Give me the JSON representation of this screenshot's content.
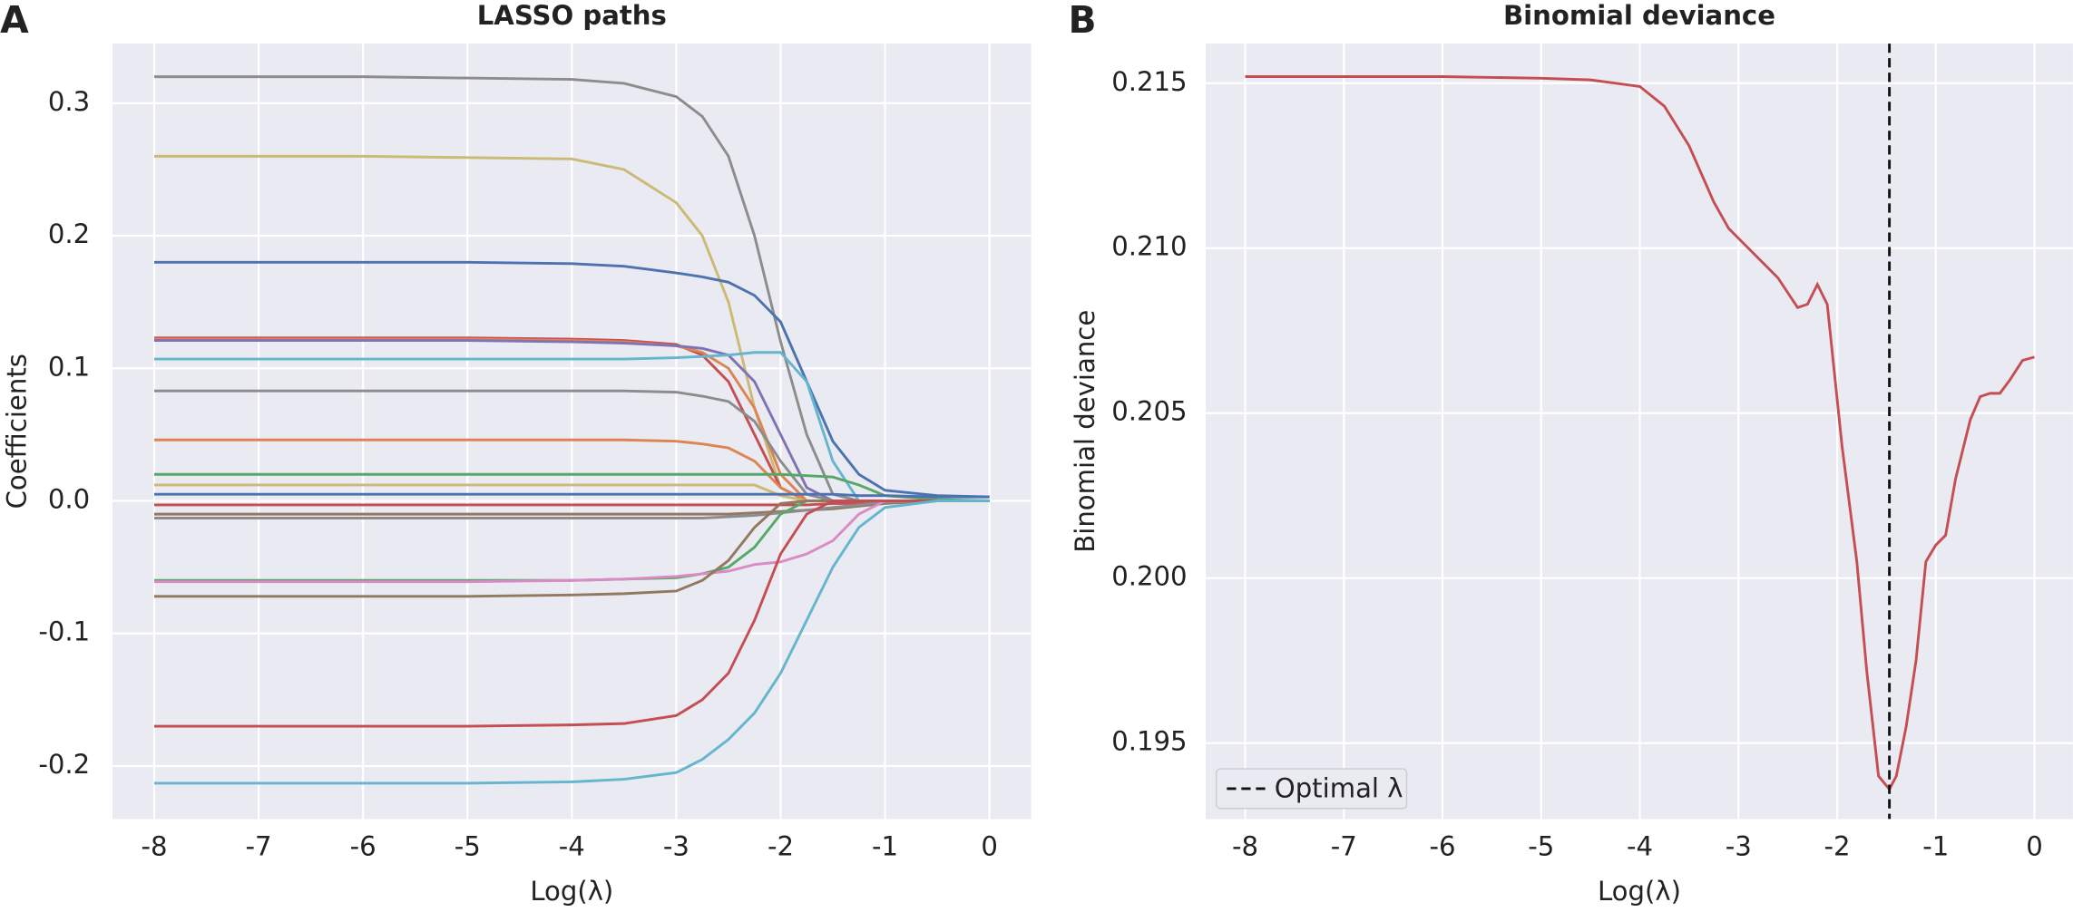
{
  "chart_data": [
    {
      "type": "line",
      "panel_label": "A",
      "title": "LASSO paths",
      "x_label": "Log(λ)",
      "y_label": "Coefficients",
      "xlim": [
        -8.4,
        0.4
      ],
      "ylim": [
        -0.24,
        0.345
      ],
      "xticks": [
        -8,
        -7,
        -6,
        -5,
        -4,
        -3,
        -2,
        -1,
        0
      ],
      "yticks": [
        -0.2,
        -0.1,
        {
          "value": 0,
          "label": "0.0"
        },
        0.1,
        0.2,
        0.3
      ],
      "grid": true,
      "x": [
        -8,
        -7,
        -6,
        -5,
        -4,
        -3.5,
        -3,
        -2.75,
        -2.5,
        -2.25,
        -2,
        -1.75,
        -1.5,
        -1.25,
        -1,
        -0.5,
        0
      ],
      "series": [
        {
          "color": "#8c8c8c",
          "values": [
            0.32,
            0.32,
            0.32,
            0.319,
            0.318,
            0.315,
            0.305,
            0.29,
            0.26,
            0.2,
            0.12,
            0.05,
            0.005,
            0,
            0,
            0,
            0
          ]
        },
        {
          "color": "#ccb974",
          "values": [
            0.26,
            0.26,
            0.26,
            0.259,
            0.258,
            0.25,
            0.225,
            0.2,
            0.15,
            0.07,
            0.01,
            0,
            0,
            0,
            0,
            0,
            0
          ]
        },
        {
          "color": "#4c72b0",
          "values": [
            0.18,
            0.18,
            0.18,
            0.18,
            0.179,
            0.177,
            0.172,
            0.169,
            0.165,
            0.155,
            0.135,
            0.09,
            0.045,
            0.02,
            0.008,
            0.004,
            0.003
          ]
        },
        {
          "color": "#c44e52",
          "values": [
            0.123,
            0.123,
            0.123,
            0.123,
            0.122,
            0.121,
            0.118,
            0.11,
            0.09,
            0.05,
            0.01,
            0,
            0,
            0,
            0,
            0,
            0
          ]
        },
        {
          "color": "#dd8452",
          "values": [
            0.122,
            0.122,
            0.122,
            0.122,
            0.121,
            0.12,
            0.117,
            0.112,
            0.1,
            0.07,
            0.02,
            0,
            0,
            0,
            0,
            0,
            0
          ]
        },
        {
          "color": "#8172b3",
          "values": [
            0.121,
            0.121,
            0.121,
            0.121,
            0.12,
            0.119,
            0.117,
            0.115,
            0.11,
            0.09,
            0.05,
            0.01,
            0,
            0,
            0,
            0,
            0
          ]
        },
        {
          "color": "#64b5cd",
          "values": [
            0.107,
            0.107,
            0.107,
            0.107,
            0.107,
            0.107,
            0.108,
            0.109,
            0.11,
            0.112,
            0.112,
            0.09,
            0.03,
            0,
            0,
            0,
            0
          ]
        },
        {
          "color": "#8c8c8c",
          "values": [
            0.083,
            0.083,
            0.083,
            0.083,
            0.083,
            0.083,
            0.082,
            0.079,
            0.075,
            0.06,
            0.03,
            0.005,
            0,
            0,
            0,
            0,
            0
          ]
        },
        {
          "color": "#dd8452",
          "values": [
            0.046,
            0.046,
            0.046,
            0.046,
            0.046,
            0.046,
            0.045,
            0.043,
            0.04,
            0.03,
            0.01,
            0,
            0,
            0,
            0,
            0,
            0
          ]
        },
        {
          "color": "#55a868",
          "values": [
            0.02,
            0.02,
            0.02,
            0.02,
            0.02,
            0.02,
            0.02,
            0.02,
            0.02,
            0.02,
            0.02,
            0.019,
            0.018,
            0.012,
            0.004,
            0.001,
            0
          ]
        },
        {
          "color": "#ccb974",
          "values": [
            0.012,
            0.012,
            0.012,
            0.012,
            0.012,
            0.012,
            0.012,
            0.012,
            0.012,
            0.012,
            0.004,
            0,
            0,
            0,
            0,
            0,
            0
          ]
        },
        {
          "color": "#4c72b0",
          "values": [
            0.005,
            0.005,
            0.005,
            0.005,
            0.005,
            0.005,
            0.005,
            0.005,
            0.005,
            0.005,
            0.005,
            0.005,
            0.005,
            0.004,
            0.004,
            0.003,
            0.003
          ]
        },
        {
          "color": "#c44e52",
          "values": [
            -0.003,
            -0.003,
            -0.003,
            -0.003,
            -0.003,
            -0.003,
            -0.003,
            -0.003,
            -0.003,
            -0.003,
            -0.003,
            -0.003,
            -0.002,
            -0.002,
            -0.001,
            0,
            0
          ]
        },
        {
          "color": "#937860",
          "values": [
            -0.01,
            -0.01,
            -0.01,
            -0.01,
            -0.01,
            -0.01,
            -0.01,
            -0.01,
            -0.01,
            -0.009,
            -0.008,
            -0.007,
            -0.006,
            -0.004,
            -0.002,
            0,
            0
          ]
        },
        {
          "color": "#8c8c8c",
          "values": [
            -0.013,
            -0.013,
            -0.013,
            -0.013,
            -0.013,
            -0.013,
            -0.013,
            -0.013,
            -0.012,
            -0.011,
            -0.009,
            -0.007,
            -0.005,
            -0.003,
            -0.001,
            0,
            0
          ]
        },
        {
          "color": "#55a868",
          "values": [
            -0.06,
            -0.06,
            -0.06,
            -0.06,
            -0.06,
            -0.059,
            -0.058,
            -0.055,
            -0.05,
            -0.035,
            -0.01,
            0,
            0,
            0,
            0,
            0,
            0
          ]
        },
        {
          "color": "#da8bc3",
          "values": [
            -0.061,
            -0.061,
            -0.061,
            -0.061,
            -0.06,
            -0.059,
            -0.057,
            -0.055,
            -0.053,
            -0.048,
            -0.046,
            -0.04,
            -0.03,
            -0.01,
            0,
            0,
            0
          ]
        },
        {
          "color": "#937860",
          "values": [
            -0.072,
            -0.072,
            -0.072,
            -0.072,
            -0.071,
            -0.07,
            -0.068,
            -0.06,
            -0.045,
            -0.02,
            -0.002,
            0,
            0,
            0,
            0,
            0,
            0
          ]
        },
        {
          "color": "#c44e52",
          "values": [
            -0.17,
            -0.17,
            -0.17,
            -0.17,
            -0.169,
            -0.168,
            -0.162,
            -0.15,
            -0.13,
            -0.09,
            -0.04,
            -0.01,
            0,
            0,
            0,
            0,
            0
          ]
        },
        {
          "color": "#64b5cd",
          "values": [
            -0.213,
            -0.213,
            -0.213,
            -0.213,
            -0.212,
            -0.21,
            -0.205,
            -0.195,
            -0.18,
            -0.16,
            -0.13,
            -0.09,
            -0.05,
            -0.02,
            -0.005,
            0,
            0
          ]
        }
      ]
    },
    {
      "type": "line",
      "panel_label": "B",
      "title": "Binomial deviance",
      "x_label": "Log(λ)",
      "y_label": "Binomial deviance",
      "xlim": [
        -8.4,
        0.39
      ],
      "ylim": [
        0.1927,
        0.2162
      ],
      "xticks": [
        -8,
        -7,
        -6,
        -5,
        -4,
        -3,
        -2,
        -1,
        0
      ],
      "yticks": [
        0.195,
        {
          "value": 0.2,
          "label": "0.200"
        },
        0.205,
        {
          "value": 0.21,
          "label": "0.210"
        },
        0.215
      ],
      "grid": true,
      "x": [
        -8,
        -7,
        -6,
        -5,
        -4.5,
        -4,
        -3.75,
        -3.5,
        -3.25,
        -3.1,
        -2.9,
        -2.6,
        -2.4,
        -2.3,
        -2.2,
        -2.1,
        -1.95,
        -1.8,
        -1.7,
        -1.58,
        -1.47,
        -1.4,
        -1.3,
        -1.2,
        -1.1,
        -1.0,
        -0.9,
        -0.8,
        -0.65,
        -0.55,
        -0.45,
        -0.35,
        -0.25,
        -0.12,
        0
      ],
      "series": [
        {
          "color": "#c44e52",
          "values": [
            0.2152,
            0.2152,
            0.2152,
            0.21515,
            0.2151,
            0.2149,
            0.2143,
            0.2131,
            0.2114,
            0.2106,
            0.21,
            0.2091,
            0.2082,
            0.2083,
            0.2089,
            0.2083,
            0.204,
            0.2005,
            0.1972,
            0.194,
            0.1936,
            0.194,
            0.1955,
            0.1975,
            0.2005,
            0.201,
            0.2013,
            0.203,
            0.2048,
            0.2055,
            0.2056,
            0.2056,
            0.206,
            0.2066,
            0.2067
          ]
        }
      ],
      "vline": {
        "x": -1.47,
        "label": "Optimal λ"
      },
      "legend": "lower left"
    }
  ]
}
